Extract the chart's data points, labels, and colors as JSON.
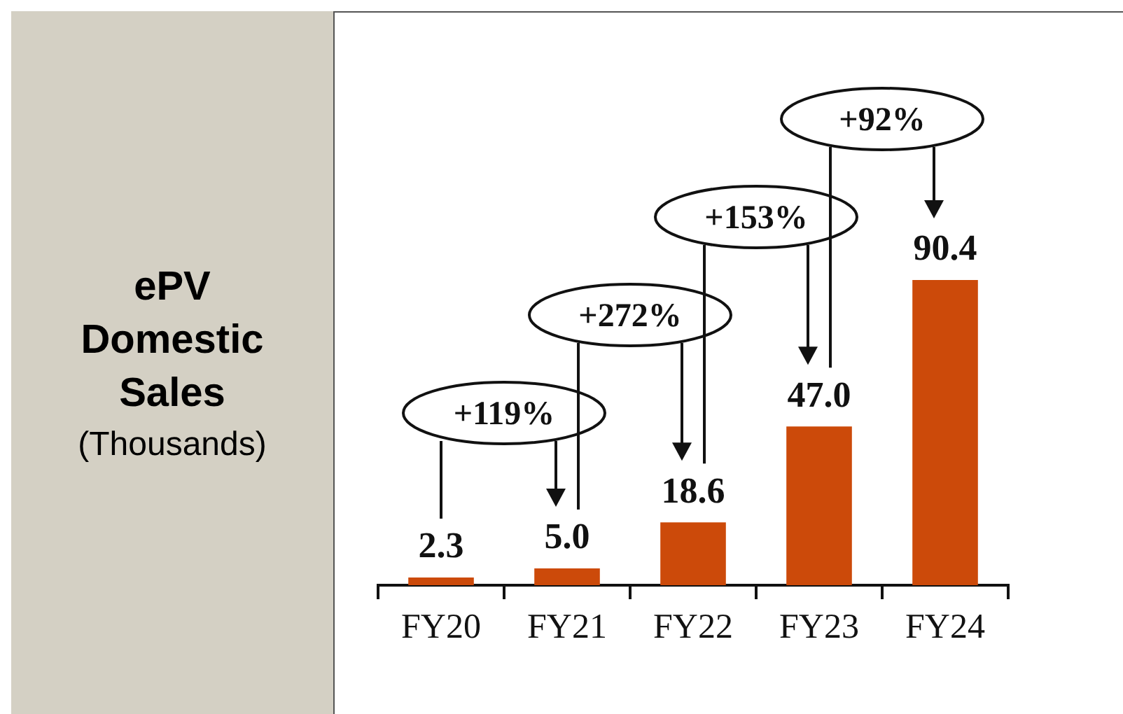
{
  "chart_data": {
    "type": "bar",
    "title": "ePV Domestic Sales",
    "subtitle": "(Thousands)",
    "categories": [
      "FY20",
      "FY21",
      "FY22",
      "FY23",
      "FY24"
    ],
    "values": [
      2.3,
      5.0,
      18.6,
      47.0,
      90.4
    ],
    "value_labels": [
      "2.3",
      "5.0",
      "18.6",
      "47.0",
      "90.4"
    ],
    "color": "#cc4a0a",
    "annotations": [
      "+119%",
      "+272%",
      "+153%",
      "+92%"
    ],
    "legend": false
  }
}
